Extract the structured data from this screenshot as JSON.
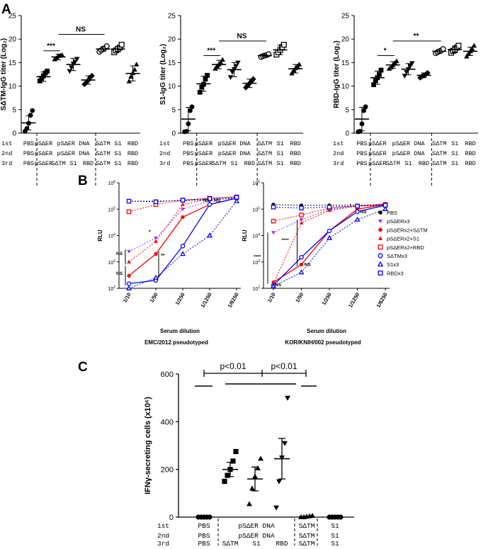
{
  "chart_data": [
    {
      "panel": "A",
      "type": "scatter",
      "ylabel": "SΔTM-IgG titer (Log₂)",
      "ylim": [
        0,
        25
      ],
      "yticks": [
        0,
        5,
        10,
        15,
        20,
        25
      ],
      "groups": [
        "PBS",
        "pSΔER",
        "pSΔER DNA → SΔTM",
        "pSΔER DNA → S1",
        "pSΔER DNA → RBD",
        "SΔTM ×3",
        "S1 ×3",
        "RBD ×3"
      ],
      "means": [
        2.2,
        12.0,
        16.2,
        14.6,
        11.3,
        17.9,
        17.9,
        12.7
      ],
      "sd": [
        1.5,
        1.0,
        0.6,
        1.3,
        0.9,
        0.5,
        0.6,
        1.6
      ],
      "markers": [
        "circle",
        "square",
        "triangle",
        "invtriangle",
        "diamond",
        "circle-open",
        "square-open",
        "triangle"
      ],
      "points": [
        [
          0.4,
          1.0,
          2.1,
          3.8,
          4.8
        ],
        [
          11.1,
          11.7,
          12.2,
          12.8,
          13.2
        ],
        [
          15.7,
          16.0,
          16.4,
          16.5,
          16.6
        ],
        [
          13.2,
          14.0,
          14.8,
          15.2,
          15.8
        ],
        [
          10.4,
          10.8,
          11.2,
          11.8,
          12.2
        ],
        [
          17.3,
          17.6,
          17.9,
          18.1,
          18.5
        ],
        [
          17.2,
          17.6,
          17.9,
          18.2,
          18.8
        ],
        [
          11.0,
          12.0,
          12.8,
          13.5,
          14.6
        ]
      ],
      "annotations": [
        {
          "text": "***",
          "from": 1,
          "to": 2,
          "y": 17.5
        },
        {
          "text": "NS",
          "from": 2,
          "to": 5,
          "y": 21
        }
      ]
    },
    {
      "panel": "A",
      "type": "scatter",
      "ylabel": "S1-IgG titer (Log₂)",
      "ylim": [
        0,
        25
      ],
      "yticks": [
        0,
        5,
        10,
        15,
        20,
        25
      ],
      "groups": [
        "PBS",
        "pSΔER",
        "pSΔER DNA → SΔTM",
        "pSΔER DNA → S1",
        "pSΔER DNA → RBD",
        "SΔTM ×3",
        "S1 ×3",
        "RBD ×3"
      ],
      "means": [
        3.0,
        10.5,
        14.6,
        13.5,
        10.6,
        16.5,
        17.7,
        13.7
      ],
      "sd": [
        2.5,
        1.6,
        0.9,
        1.5,
        0.9,
        0.2,
        1.0,
        0.9
      ],
      "markers": [
        "circle",
        "square",
        "triangle",
        "invtriangle",
        "diamond",
        "circle-open",
        "square-open",
        "triangle"
      ],
      "points": [
        [
          0.3,
          0.4,
          2.0,
          4.8,
          5.6
        ],
        [
          8.7,
          9.8,
          10.4,
          11.5,
          12.3
        ],
        [
          13.7,
          14.2,
          14.6,
          15.0,
          15.6
        ],
        [
          11.9,
          13.0,
          13.6,
          14.3,
          15.0
        ],
        [
          9.7,
          10.2,
          10.6,
          11.0,
          11.5
        ],
        [
          16.2,
          16.4,
          16.5,
          16.6,
          16.8
        ],
        [
          16.7,
          17.2,
          17.7,
          18.3,
          18.8
        ],
        [
          12.7,
          13.3,
          13.8,
          14.2,
          14.6
        ]
      ],
      "annotations": [
        {
          "text": "***",
          "from": 1,
          "to": 2,
          "y": 16.5
        },
        {
          "text": "NS",
          "from": 2,
          "to": 5,
          "y": 19.6
        }
      ]
    },
    {
      "panel": "A",
      "type": "scatter",
      "ylabel": "RBD-IgG titer (Log₂)",
      "ylim": [
        0,
        25
      ],
      "yticks": [
        0,
        5,
        10,
        15,
        20,
        25
      ],
      "groups": [
        "PBS",
        "pSΔER",
        "pSΔER DNA → SΔTM",
        "pSΔER DNA → S1",
        "pSΔER DNA → RBD",
        "SΔTM ×3",
        "S1 ×3",
        "RBD ×3"
      ],
      "means": [
        3.0,
        11.8,
        14.5,
        13.6,
        12.3,
        17.4,
        17.8,
        17.4
      ],
      "sd": [
        2.5,
        1.4,
        0.7,
        1.2,
        0.5,
        0.4,
        0.7,
        0.9
      ],
      "markers": [
        "circle",
        "square",
        "triangle",
        "invtriangle",
        "diamond",
        "circle-open",
        "square-open",
        "triangle"
      ],
      "points": [
        [
          0.3,
          0.4,
          2.0,
          4.8,
          5.6
        ],
        [
          10.3,
          11.2,
          11.8,
          12.5,
          13.4
        ],
        [
          13.7,
          14.0,
          14.5,
          14.9,
          15.3
        ],
        [
          12.2,
          13.0,
          13.6,
          14.3,
          14.9
        ],
        [
          11.8,
          12.1,
          12.3,
          12.5,
          12.8
        ],
        [
          17.0,
          17.2,
          17.4,
          17.6,
          17.9
        ],
        [
          17.1,
          17.5,
          17.8,
          18.2,
          18.6
        ],
        [
          16.3,
          16.9,
          17.4,
          17.9,
          18.6
        ]
      ],
      "annotations": [
        {
          "text": "*",
          "from": 1,
          "to": 2,
          "y": 16.5
        },
        {
          "text": "**",
          "from": 2,
          "to": 5,
          "y": 19.6
        }
      ]
    },
    {
      "panel": "B",
      "type": "line",
      "title": "EMC/2012 pseudotyped",
      "xlabel": "Serum dilution",
      "ylabel": "RLU",
      "yscale": "log",
      "ylim": [
        100,
        1000000
      ],
      "x": [
        "1/10",
        "1/50",
        "1/250",
        "1/1250",
        "1/6250"
      ],
      "series": [
        {
          "name": "PBS",
          "color": "#000000",
          "marker": "dot",
          "values": [
            200000,
            200000,
            210000,
            230000,
            250000
          ]
        },
        {
          "name": "pSΔERx3",
          "color": "#9933ff",
          "marker": "invtriangle",
          "values": [
            2500,
            8000,
            100000,
            200000,
            280000
          ]
        },
        {
          "name": "pSΔERx2+SΔTM",
          "color": "#ff0000",
          "marker": "dot",
          "values": [
            300,
            2000,
            50000,
            150000,
            260000
          ]
        },
        {
          "name": "pSΔERx2+S1",
          "color": "#ff0000",
          "marker": "triangle",
          "values": [
            1000,
            6000,
            150000,
            250000,
            300000
          ]
        },
        {
          "name": "pSΔERx2+RBD",
          "color": "#ff0000",
          "marker": "square-open",
          "values": [
            80000,
            150000,
            220000,
            260000,
            290000
          ]
        },
        {
          "name": "SΔTMx3",
          "color": "#0000ff",
          "marker": "circle-open",
          "values": [
            150,
            200,
            4000,
            150000,
            260000
          ]
        },
        {
          "name": "S1x3",
          "color": "#0000ff",
          "marker": "triangle-open",
          "values": [
            100,
            250,
            2000,
            10000,
            200000
          ]
        },
        {
          "name": "RBDx3",
          "color": "#0000ff",
          "marker": "square-open",
          "values": [
            200000,
            190000,
            220000,
            250000,
            280000
          ]
        }
      ],
      "annotations": [
        "NS",
        "NS",
        "*",
        "**",
        "NS",
        "NS"
      ]
    },
    {
      "panel": "B",
      "type": "line",
      "title": "KOR/KNIH/002 pseudotyped",
      "xlabel": "Serum dilution",
      "ylabel": "RLU",
      "yscale": "log",
      "ylim": [
        100,
        1000000
      ],
      "x": [
        "1/10",
        "1/50",
        "1/250",
        "1/1250",
        "1/6250"
      ],
      "series": [
        {
          "name": "PBS",
          "color": "#000000",
          "marker": "dot",
          "values": [
            150000,
            140000,
            140000,
            140000,
            150000
          ]
        },
        {
          "name": "pSΔERx3",
          "color": "#9933ff",
          "marker": "invtriangle",
          "values": [
            13000,
            40000,
            100000,
            130000,
            160000
          ]
        },
        {
          "name": "pSΔERx2+SΔTM",
          "color": "#ff0000",
          "marker": "dot",
          "values": [
            170,
            800,
            15000,
            100000,
            150000
          ]
        },
        {
          "name": "pSΔERx2+S1",
          "color": "#ff0000",
          "marker": "triangle",
          "values": [
            150,
            30000,
            90000,
            130000,
            160000
          ]
        },
        {
          "name": "pSΔERx2+RBD",
          "color": "#ff0000",
          "marker": "square-open",
          "values": [
            35000,
            60000,
            110000,
            130000,
            150000
          ]
        },
        {
          "name": "SΔTMx3",
          "color": "#0000ff",
          "marker": "circle-open",
          "values": [
            130,
            1500,
            15000,
            80000,
            140000
          ]
        },
        {
          "name": "S1x3",
          "color": "#0000ff",
          "marker": "triangle-open",
          "values": [
            120,
            400,
            8000,
            40000,
            100000
          ]
        },
        {
          "name": "RBDx3",
          "color": "#0000ff",
          "marker": "square-open",
          "values": [
            120000,
            110000,
            120000,
            130000,
            140000
          ]
        }
      ],
      "annotations": [
        "****",
        "****",
        "NS",
        "NS",
        "*",
        "NS"
      ]
    },
    {
      "panel": "C",
      "type": "scatter",
      "ylabel": "IFNγ-secreting cells (x10⁶)",
      "ylim": [
        0,
        600
      ],
      "yticks": [
        0,
        200,
        400,
        600
      ],
      "groups": [
        "PBS",
        "pSΔER DNA → SΔTM",
        "pSΔER DNA → S1",
        "pSΔER DNA → RBD",
        "SΔTM ×3",
        "S1 ×3"
      ],
      "means": [
        0,
        200,
        160,
        245,
        2,
        0
      ],
      "sem": [
        0,
        30,
        50,
        85,
        1,
        0
      ],
      "markers": [
        "circle",
        "square",
        "triangle",
        "invtriangle",
        "triangle",
        "circle"
      ],
      "points": [
        [
          0,
          0,
          0,
          0,
          0
        ],
        [
          150,
          175,
          200,
          235,
          275
        ],
        [
          55,
          120,
          170,
          205,
          245
        ],
        [
          40,
          150,
          250,
          310,
          500
        ],
        [
          0,
          0,
          2,
          4,
          6
        ],
        [
          0,
          0,
          0,
          0,
          0
        ]
      ],
      "annotations": [
        "p<0.01",
        "p<0.01"
      ]
    }
  ],
  "panel_labels": {
    "a": "A",
    "b": "B",
    "c": "C"
  },
  "schedule_a": {
    "row_labels": [
      "1st",
      "2nd",
      "3rd"
    ],
    "rows": [
      [
        "PBS",
        "pSΔER",
        "pSΔER DNA",
        "",
        "",
        "SΔTM",
        "S1",
        "RBD"
      ],
      [
        "PBS",
        "pSΔER",
        "pSΔER DNA",
        "",
        "",
        "SΔTM",
        "S1",
        "RBD"
      ],
      [
        "PBS",
        "pSΔER",
        "SΔTM",
        "S1",
        "RBD",
        "SΔTM",
        "S1",
        "RBD"
      ]
    ]
  },
  "schedule_c": {
    "rows": [
      [
        "1st",
        "PBS",
        "pSΔER DNA",
        "SΔTM",
        "S1"
      ],
      [
        "2nd",
        "PBS",
        "pSΔER DNA",
        "SΔTM",
        "S1"
      ],
      [
        "3rd",
        "PBS",
        "SΔTM",
        "S1",
        "RBD",
        "SΔTM",
        "S1"
      ]
    ]
  }
}
